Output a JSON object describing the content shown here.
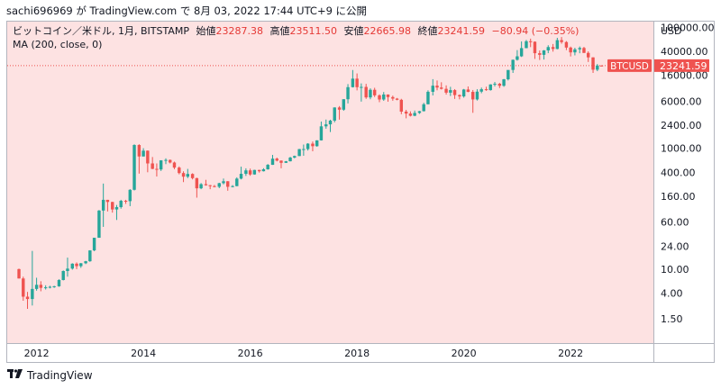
{
  "attribution": "sachi696969 が TradingView.com で 8月 03, 2022 17:44 UTC+9 に公開",
  "legend": {
    "symbol": "ビットコイン／米ドル, 1月, BITSTAMP",
    "open_label": "始値",
    "open": "23287.38",
    "high_label": "高値",
    "high": "23511.50",
    "low_label": "安値",
    "low": "22665.98",
    "close_label": "終値",
    "close": "23241.59",
    "change": "−80.94 (−0.35%)"
  },
  "indicator": "MA (200, close, 0)",
  "currency": "USD",
  "footer": {
    "logo_text": "TradingView",
    "logo_icon": "tradingview-logo-icon"
  },
  "colors": {
    "background_shade": "#fde2e2",
    "up": "#26a69a",
    "down": "#ef5350",
    "badge": "#ef5350"
  },
  "chart_data": {
    "type": "candlestick",
    "interval": "1 month",
    "yscale": "log",
    "ylim": [
      1.0,
      120000
    ],
    "xlim": [
      2011.45,
      2023.55
    ],
    "y_ticks": [
      100000.0,
      40000.0,
      16000.0,
      6000.0,
      2400.0,
      1000.0,
      400.0,
      160.0,
      60.0,
      24.0,
      10.0,
      4.0,
      1.5
    ],
    "x_ticks": [
      "2012",
      "2014",
      "2016",
      "2018",
      "2020",
      "2022"
    ],
    "last_price": {
      "label": "BTCUSD",
      "value": 23241.59
    },
    "candles": [
      {
        "t": 2011.67,
        "o": 10,
        "h": 10.2,
        "l": 7,
        "c": 7
      },
      {
        "t": 2011.75,
        "o": 7,
        "h": 7.5,
        "l": 3,
        "c": 3.5
      },
      {
        "t": 2011.83,
        "o": 3.5,
        "h": 4.2,
        "l": 2.2,
        "c": 3.2
      },
      {
        "t": 2011.92,
        "o": 3.2,
        "h": 20,
        "l": 2.5,
        "c": 4.7
      },
      {
        "t": 2012.0,
        "o": 4.7,
        "h": 7.2,
        "l": 4.4,
        "c": 5.5
      },
      {
        "t": 2012.08,
        "o": 5.5,
        "h": 6.3,
        "l": 4.3,
        "c": 4.9
      },
      {
        "t": 2012.17,
        "o": 4.9,
        "h": 5.4,
        "l": 4.6,
        "c": 5.0
      },
      {
        "t": 2012.25,
        "o": 5.0,
        "h": 5.3,
        "l": 4.8,
        "c": 5.1
      },
      {
        "t": 2012.33,
        "o": 5.1,
        "h": 5.3,
        "l": 4.9,
        "c": 5.2
      },
      {
        "t": 2012.42,
        "o": 5.2,
        "h": 6.8,
        "l": 5.1,
        "c": 6.6
      },
      {
        "t": 2012.5,
        "o": 6.6,
        "h": 9.5,
        "l": 6.5,
        "c": 9.3
      },
      {
        "t": 2012.58,
        "o": 9.3,
        "h": 15.5,
        "l": 7.5,
        "c": 10.2
      },
      {
        "t": 2012.67,
        "o": 10.2,
        "h": 12.5,
        "l": 9.8,
        "c": 12.3
      },
      {
        "t": 2012.75,
        "o": 12.3,
        "h": 12.9,
        "l": 10.0,
        "c": 11.2
      },
      {
        "t": 2012.83,
        "o": 11.2,
        "h": 12.6,
        "l": 10.5,
        "c": 12.5
      },
      {
        "t": 2012.92,
        "o": 12.5,
        "h": 13.7,
        "l": 12.1,
        "c": 13.5
      },
      {
        "t": 2013.0,
        "o": 13.5,
        "h": 20.5,
        "l": 13.2,
        "c": 20.4
      },
      {
        "t": 2013.08,
        "o": 20.4,
        "h": 33,
        "l": 19.8,
        "c": 33
      },
      {
        "t": 2013.17,
        "o": 33,
        "h": 95,
        "l": 33,
        "c": 93
      },
      {
        "t": 2013.25,
        "o": 93,
        "h": 260,
        "l": 50,
        "c": 140
      },
      {
        "t": 2013.33,
        "o": 140,
        "h": 140,
        "l": 90,
        "c": 129
      },
      {
        "t": 2013.42,
        "o": 129,
        "h": 130,
        "l": 86,
        "c": 97
      },
      {
        "t": 2013.5,
        "o": 97,
        "h": 115,
        "l": 65,
        "c": 106
      },
      {
        "t": 2013.58,
        "o": 106,
        "h": 140,
        "l": 100,
        "c": 135
      },
      {
        "t": 2013.67,
        "o": 135,
        "h": 140,
        "l": 120,
        "c": 133
      },
      {
        "t": 2013.75,
        "o": 133,
        "h": 210,
        "l": 110,
        "c": 205
      },
      {
        "t": 2013.83,
        "o": 205,
        "h": 1160,
        "l": 200,
        "c": 1130
      },
      {
        "t": 2013.92,
        "o": 1130,
        "h": 1165,
        "l": 380,
        "c": 730
      },
      {
        "t": 2014.0,
        "o": 730,
        "h": 1000,
        "l": 730,
        "c": 910
      },
      {
        "t": 2014.08,
        "o": 910,
        "h": 920,
        "l": 400,
        "c": 560
      },
      {
        "t": 2014.17,
        "o": 560,
        "h": 715,
        "l": 450,
        "c": 455
      },
      {
        "t": 2014.25,
        "o": 455,
        "h": 560,
        "l": 340,
        "c": 445
      },
      {
        "t": 2014.33,
        "o": 445,
        "h": 630,
        "l": 420,
        "c": 630
      },
      {
        "t": 2014.42,
        "o": 630,
        "h": 680,
        "l": 545,
        "c": 640
      },
      {
        "t": 2014.5,
        "o": 640,
        "h": 650,
        "l": 560,
        "c": 580
      },
      {
        "t": 2014.58,
        "o": 580,
        "h": 600,
        "l": 450,
        "c": 478
      },
      {
        "t": 2014.67,
        "o": 478,
        "h": 500,
        "l": 370,
        "c": 388
      },
      {
        "t": 2014.75,
        "o": 388,
        "h": 415,
        "l": 275,
        "c": 338
      },
      {
        "t": 2014.83,
        "o": 338,
        "h": 455,
        "l": 320,
        "c": 375
      },
      {
        "t": 2014.92,
        "o": 375,
        "h": 385,
        "l": 305,
        "c": 320
      },
      {
        "t": 2015.0,
        "o": 320,
        "h": 325,
        "l": 152,
        "c": 217
      },
      {
        "t": 2015.08,
        "o": 217,
        "h": 265,
        "l": 210,
        "c": 254
      },
      {
        "t": 2015.17,
        "o": 254,
        "h": 300,
        "l": 240,
        "c": 244
      },
      {
        "t": 2015.25,
        "o": 244,
        "h": 247,
        "l": 210,
        "c": 236
      },
      {
        "t": 2015.33,
        "o": 236,
        "h": 247,
        "l": 225,
        "c": 230
      },
      {
        "t": 2015.42,
        "o": 230,
        "h": 268,
        "l": 218,
        "c": 264
      },
      {
        "t": 2015.5,
        "o": 264,
        "h": 315,
        "l": 252,
        "c": 284
      },
      {
        "t": 2015.58,
        "o": 284,
        "h": 285,
        "l": 198,
        "c": 230
      },
      {
        "t": 2015.67,
        "o": 230,
        "h": 245,
        "l": 225,
        "c": 236
      },
      {
        "t": 2015.75,
        "o": 236,
        "h": 330,
        "l": 235,
        "c": 314
      },
      {
        "t": 2015.83,
        "o": 314,
        "h": 495,
        "l": 305,
        "c": 377
      },
      {
        "t": 2015.92,
        "o": 377,
        "h": 465,
        "l": 348,
        "c": 430
      },
      {
        "t": 2016.0,
        "o": 430,
        "h": 460,
        "l": 350,
        "c": 368
      },
      {
        "t": 2016.08,
        "o": 368,
        "h": 440,
        "l": 365,
        "c": 437
      },
      {
        "t": 2016.17,
        "o": 437,
        "h": 439,
        "l": 395,
        "c": 416
      },
      {
        "t": 2016.25,
        "o": 416,
        "h": 467,
        "l": 412,
        "c": 448
      },
      {
        "t": 2016.33,
        "o": 448,
        "h": 548,
        "l": 441,
        "c": 531
      },
      {
        "t": 2016.42,
        "o": 531,
        "h": 775,
        "l": 530,
        "c": 672
      },
      {
        "t": 2016.5,
        "o": 672,
        "h": 700,
        "l": 605,
        "c": 624
      },
      {
        "t": 2016.58,
        "o": 624,
        "h": 627,
        "l": 465,
        "c": 573
      },
      {
        "t": 2016.67,
        "o": 573,
        "h": 615,
        "l": 570,
        "c": 608
      },
      {
        "t": 2016.75,
        "o": 608,
        "h": 720,
        "l": 604,
        "c": 700
      },
      {
        "t": 2016.83,
        "o": 700,
        "h": 755,
        "l": 680,
        "c": 742
      },
      {
        "t": 2016.92,
        "o": 742,
        "h": 975,
        "l": 740,
        "c": 966
      },
      {
        "t": 2017.0,
        "o": 966,
        "h": 1150,
        "l": 750,
        "c": 968
      },
      {
        "t": 2017.08,
        "o": 968,
        "h": 1210,
        "l": 915,
        "c": 1190
      },
      {
        "t": 2017.17,
        "o": 1190,
        "h": 1290,
        "l": 890,
        "c": 1080
      },
      {
        "t": 2017.25,
        "o": 1080,
        "h": 1355,
        "l": 1060,
        "c": 1348
      },
      {
        "t": 2017.33,
        "o": 1348,
        "h": 2760,
        "l": 1340,
        "c": 2300
      },
      {
        "t": 2017.42,
        "o": 2300,
        "h": 2980,
        "l": 2100,
        "c": 2480
      },
      {
        "t": 2017.5,
        "o": 2480,
        "h": 2950,
        "l": 1850,
        "c": 2860
      },
      {
        "t": 2017.58,
        "o": 2860,
        "h": 4740,
        "l": 2680,
        "c": 4720
      },
      {
        "t": 2017.67,
        "o": 4720,
        "h": 4975,
        "l": 2970,
        "c": 4340
      },
      {
        "t": 2017.75,
        "o": 4340,
        "h": 6470,
        "l": 4160,
        "c": 6460
      },
      {
        "t": 2017.83,
        "o": 6460,
        "h": 11500,
        "l": 5500,
        "c": 10230
      },
      {
        "t": 2017.92,
        "o": 10230,
        "h": 19660,
        "l": 10100,
        "c": 14150
      },
      {
        "t": 2018.0,
        "o": 14150,
        "h": 17250,
        "l": 9050,
        "c": 10220
      },
      {
        "t": 2018.08,
        "o": 10220,
        "h": 11800,
        "l": 5900,
        "c": 10320
      },
      {
        "t": 2018.17,
        "o": 10320,
        "h": 11600,
        "l": 6550,
        "c": 6920
      },
      {
        "t": 2018.25,
        "o": 6920,
        "h": 9780,
        "l": 6450,
        "c": 9250
      },
      {
        "t": 2018.33,
        "o": 9250,
        "h": 9990,
        "l": 7020,
        "c": 7490
      },
      {
        "t": 2018.42,
        "o": 7490,
        "h": 7770,
        "l": 5770,
        "c": 6390
      },
      {
        "t": 2018.5,
        "o": 6390,
        "h": 8500,
        "l": 6080,
        "c": 7730
      },
      {
        "t": 2018.58,
        "o": 7730,
        "h": 7760,
        "l": 5880,
        "c": 7010
      },
      {
        "t": 2018.67,
        "o": 7010,
        "h": 7410,
        "l": 6100,
        "c": 6610
      },
      {
        "t": 2018.75,
        "o": 6610,
        "h": 6780,
        "l": 6200,
        "c": 6320
      },
      {
        "t": 2018.83,
        "o": 6320,
        "h": 6560,
        "l": 3650,
        "c": 4030
      },
      {
        "t": 2018.92,
        "o": 4030,
        "h": 4310,
        "l": 3120,
        "c": 3740
      },
      {
        "t": 2019.0,
        "o": 3740,
        "h": 4070,
        "l": 3350,
        "c": 3440
      },
      {
        "t": 2019.08,
        "o": 3440,
        "h": 4200,
        "l": 3380,
        "c": 3830
      },
      {
        "t": 2019.17,
        "o": 3830,
        "h": 4140,
        "l": 3700,
        "c": 4100
      },
      {
        "t": 2019.25,
        "o": 4100,
        "h": 5630,
        "l": 4050,
        "c": 5330
      },
      {
        "t": 2019.33,
        "o": 5330,
        "h": 9070,
        "l": 5330,
        "c": 8570
      },
      {
        "t": 2019.42,
        "o": 8570,
        "h": 13880,
        "l": 7460,
        "c": 10820
      },
      {
        "t": 2019.5,
        "o": 10820,
        "h": 13200,
        "l": 9070,
        "c": 10080
      },
      {
        "t": 2019.58,
        "o": 10080,
        "h": 12330,
        "l": 9350,
        "c": 9600
      },
      {
        "t": 2019.67,
        "o": 9600,
        "h": 10950,
        "l": 7700,
        "c": 8290
      },
      {
        "t": 2019.75,
        "o": 8290,
        "h": 10370,
        "l": 7300,
        "c": 9150
      },
      {
        "t": 2019.83,
        "o": 9150,
        "h": 9500,
        "l": 6530,
        "c": 7560
      },
      {
        "t": 2019.92,
        "o": 7560,
        "h": 7750,
        "l": 6430,
        "c": 7190
      },
      {
        "t": 2020.0,
        "o": 7190,
        "h": 9560,
        "l": 6850,
        "c": 9350
      },
      {
        "t": 2020.08,
        "o": 9350,
        "h": 10500,
        "l": 8440,
        "c": 8540
      },
      {
        "t": 2020.17,
        "o": 8540,
        "h": 9180,
        "l": 3850,
        "c": 6410
      },
      {
        "t": 2020.25,
        "o": 6410,
        "h": 9450,
        "l": 6150,
        "c": 8630
      },
      {
        "t": 2020.33,
        "o": 8630,
        "h": 10070,
        "l": 8110,
        "c": 9450
      },
      {
        "t": 2020.42,
        "o": 9450,
        "h": 10400,
        "l": 8900,
        "c": 9140
      },
      {
        "t": 2020.5,
        "o": 9140,
        "h": 11440,
        "l": 8970,
        "c": 11340
      },
      {
        "t": 2020.58,
        "o": 11340,
        "h": 12470,
        "l": 10520,
        "c": 11650
      },
      {
        "t": 2020.67,
        "o": 11650,
        "h": 12070,
        "l": 9880,
        "c": 10780
      },
      {
        "t": 2020.75,
        "o": 10780,
        "h": 14000,
        "l": 10370,
        "c": 13800
      },
      {
        "t": 2020.83,
        "o": 13800,
        "h": 19480,
        "l": 13200,
        "c": 19700
      },
      {
        "t": 2020.92,
        "o": 19700,
        "h": 29300,
        "l": 17600,
        "c": 28990
      },
      {
        "t": 2021.0,
        "o": 28990,
        "h": 41950,
        "l": 28130,
        "c": 33110
      },
      {
        "t": 2021.08,
        "o": 33110,
        "h": 58350,
        "l": 32300,
        "c": 45240
      },
      {
        "t": 2021.17,
        "o": 45240,
        "h": 61780,
        "l": 45000,
        "c": 58790
      },
      {
        "t": 2021.25,
        "o": 58790,
        "h": 64900,
        "l": 47000,
        "c": 57720
      },
      {
        "t": 2021.33,
        "o": 57720,
        "h": 58470,
        "l": 30000,
        "c": 37300
      },
      {
        "t": 2021.42,
        "o": 37300,
        "h": 41330,
        "l": 28800,
        "c": 35040
      },
      {
        "t": 2021.5,
        "o": 35040,
        "h": 42000,
        "l": 29280,
        "c": 41460
      },
      {
        "t": 2021.58,
        "o": 41460,
        "h": 50500,
        "l": 37330,
        "c": 47100
      },
      {
        "t": 2021.67,
        "o": 47100,
        "h": 52920,
        "l": 39600,
        "c": 43820
      },
      {
        "t": 2021.75,
        "o": 43820,
        "h": 66990,
        "l": 43290,
        "c": 61320
      },
      {
        "t": 2021.83,
        "o": 61320,
        "h": 69000,
        "l": 53500,
        "c": 57000
      },
      {
        "t": 2021.92,
        "o": 57000,
        "h": 59100,
        "l": 42000,
        "c": 46200
      },
      {
        "t": 2022.0,
        "o": 46200,
        "h": 47990,
        "l": 32950,
        "c": 38480
      },
      {
        "t": 2022.08,
        "o": 38480,
        "h": 45850,
        "l": 34320,
        "c": 43180
      },
      {
        "t": 2022.17,
        "o": 43180,
        "h": 48200,
        "l": 37200,
        "c": 45500
      },
      {
        "t": 2022.25,
        "o": 45500,
        "h": 47500,
        "l": 37700,
        "c": 37700
      },
      {
        "t": 2022.33,
        "o": 37700,
        "h": 40000,
        "l": 26700,
        "c": 31800
      },
      {
        "t": 2022.42,
        "o": 31800,
        "h": 31950,
        "l": 17600,
        "c": 19900
      },
      {
        "t": 2022.5,
        "o": 19900,
        "h": 24660,
        "l": 18800,
        "c": 23300
      },
      {
        "t": 2022.58,
        "o": 23287.38,
        "h": 23511.5,
        "l": 22665.98,
        "c": 23241.59
      }
    ]
  }
}
